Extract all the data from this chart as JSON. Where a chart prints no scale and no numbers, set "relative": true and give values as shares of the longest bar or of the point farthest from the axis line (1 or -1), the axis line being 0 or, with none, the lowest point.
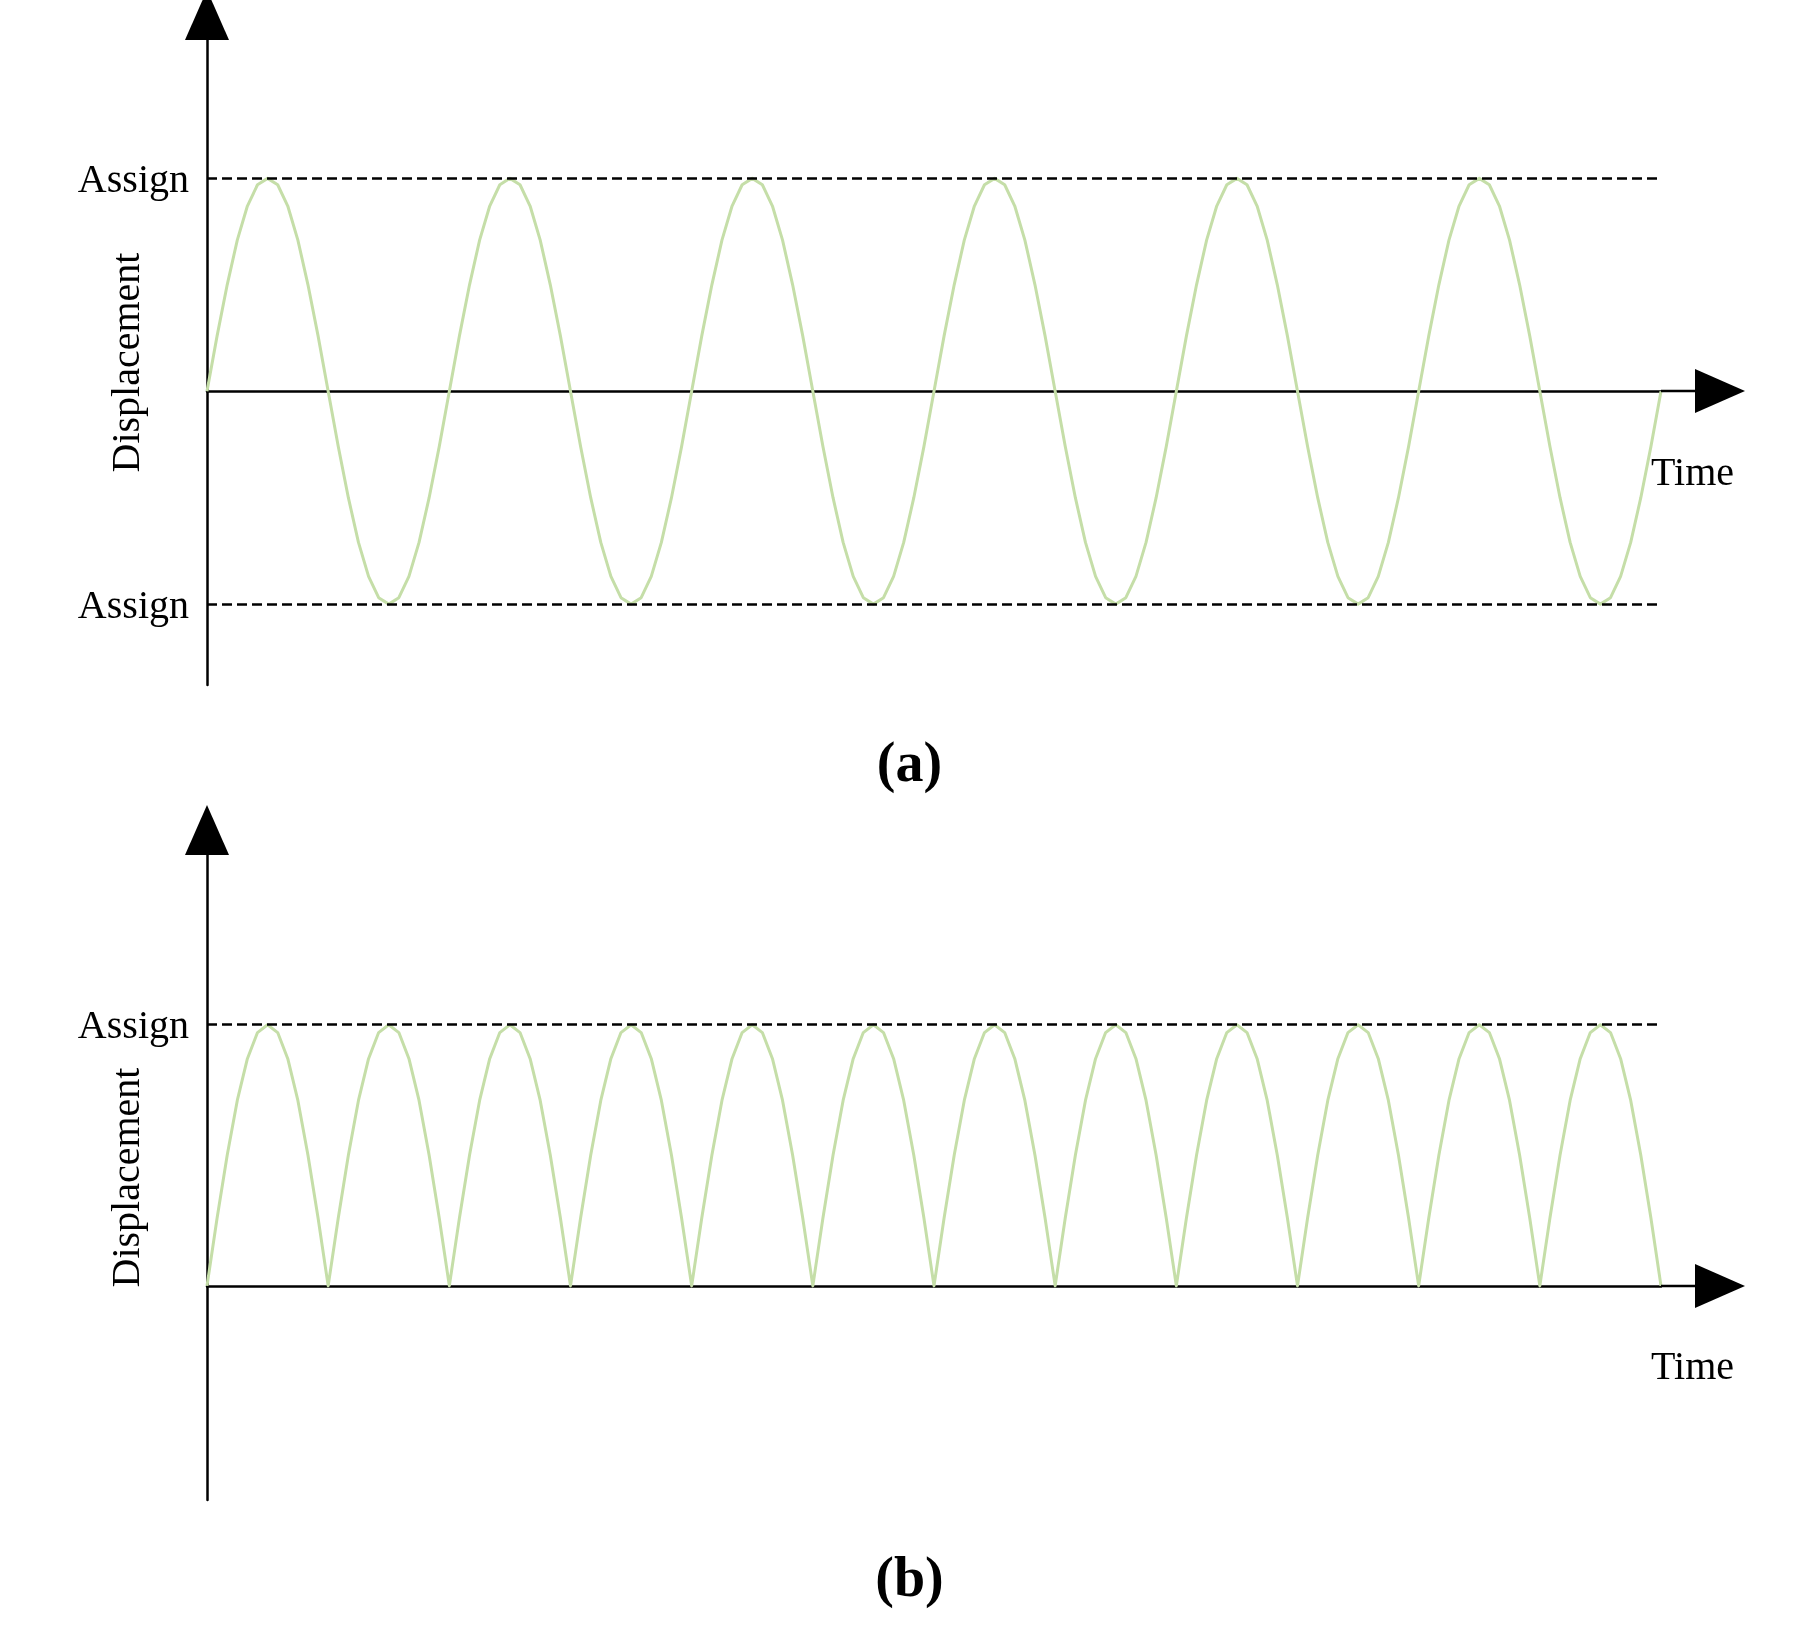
{
  "chart_data": [
    {
      "type": "line",
      "title": "(a)",
      "xlabel": "Time",
      "ylabel": "Displacement",
      "relative": true,
      "grid": false,
      "marker": "none",
      "categories": [
        null,
        null,
        null,
        null,
        null,
        null,
        null,
        null,
        null,
        null,
        null,
        null,
        null,
        null,
        null,
        null,
        null,
        null,
        null,
        null,
        null,
        null,
        null,
        null,
        null,
        null,
        null,
        null,
        null,
        null,
        null,
        null,
        null,
        null,
        null,
        null,
        null,
        null,
        null,
        null,
        null,
        null,
        null,
        null,
        null,
        null,
        null,
        null,
        null,
        null,
        null,
        null,
        null,
        null,
        null,
        null,
        null,
        null,
        null,
        null,
        null,
        null,
        null,
        null,
        null,
        null,
        null,
        null,
        null,
        null,
        null,
        null,
        null,
        null,
        null,
        null,
        null,
        null,
        null,
        null,
        null,
        null,
        null,
        null,
        null,
        null,
        null,
        null,
        null,
        null,
        null,
        null,
        null,
        null,
        null,
        null,
        null,
        null,
        null,
        null,
        null,
        null,
        null,
        null,
        null,
        null,
        null,
        null,
        null,
        null,
        null,
        null,
        null,
        null,
        null,
        null,
        null,
        null,
        null,
        null,
        null,
        null,
        null,
        null,
        null,
        null,
        null,
        null,
        null,
        null,
        null,
        null,
        null,
        null,
        null,
        null,
        null,
        null,
        null,
        null,
        null,
        null,
        null,
        null,
        null
      ],
      "series": [
        {
          "color": "#c5dea8",
          "values": [
            0,
            0.26,
            0.5,
            0.71,
            0.87,
            0.97,
            1,
            0.97,
            0.87,
            0.71,
            0.5,
            0.26,
            0,
            -0.26,
            -0.5,
            -0.71,
            -0.87,
            -0.97,
            -1,
            -0.97,
            -0.87,
            -0.71,
            -0.5,
            -0.26,
            0,
            0.26,
            0.5,
            0.71,
            0.87,
            0.97,
            1,
            0.97,
            0.87,
            0.71,
            0.5,
            0.26,
            0,
            -0.26,
            -0.5,
            -0.71,
            -0.87,
            -0.97,
            -1,
            -0.97,
            -0.87,
            -0.71,
            -0.5,
            -0.26,
            0,
            0.26,
            0.5,
            0.71,
            0.87,
            0.97,
            1,
            0.97,
            0.87,
            0.71,
            0.5,
            0.26,
            0,
            -0.26,
            -0.5,
            -0.71,
            -0.87,
            -0.97,
            -1,
            -0.97,
            -0.87,
            -0.71,
            -0.5,
            -0.26,
            0,
            0.26,
            0.5,
            0.71,
            0.87,
            0.97,
            1,
            0.97,
            0.87,
            0.71,
            0.5,
            0.26,
            0,
            -0.26,
            -0.5,
            -0.71,
            -0.87,
            -0.97,
            -1,
            -0.97,
            -0.87,
            -0.71,
            -0.5,
            -0.26,
            0,
            0.26,
            0.5,
            0.71,
            0.87,
            0.97,
            1,
            0.97,
            0.87,
            0.71,
            0.5,
            0.26,
            0,
            -0.26,
            -0.5,
            -0.71,
            -0.87,
            -0.97,
            -1,
            -0.97,
            -0.87,
            -0.71,
            -0.5,
            -0.26,
            0,
            0.26,
            0.5,
            0.71,
            0.87,
            0.97,
            1,
            0.97,
            0.87,
            0.71,
            0.5,
            0.26,
            0,
            -0.26,
            -0.5,
            -0.71,
            -0.87,
            -0.97,
            -1,
            -0.97,
            -0.87,
            -0.71,
            -0.5,
            -0.26,
            0
          ]
        }
      ],
      "ref_lines": [
        {
          "axis": "y",
          "value": 1,
          "label": "Assign",
          "color": "#000000",
          "line_style": "dashed"
        },
        {
          "axis": "y",
          "value": -1,
          "label": "Assign",
          "color": "#000000",
          "line_style": "dashed"
        }
      ]
    },
    {
      "type": "line",
      "title": "(b)",
      "xlabel": "Time",
      "ylabel": "Displacement",
      "relative": true,
      "grid": false,
      "marker": "none",
      "categories": [
        null,
        null,
        null,
        null,
        null,
        null,
        null,
        null,
        null,
        null,
        null,
        null,
        null,
        null,
        null,
        null,
        null,
        null,
        null,
        null,
        null,
        null,
        null,
        null,
        null,
        null,
        null,
        null,
        null,
        null,
        null,
        null,
        null,
        null,
        null,
        null,
        null,
        null,
        null,
        null,
        null,
        null,
        null,
        null,
        null,
        null,
        null,
        null,
        null,
        null,
        null,
        null,
        null,
        null,
        null,
        null,
        null,
        null,
        null,
        null,
        null,
        null,
        null,
        null,
        null,
        null,
        null,
        null,
        null,
        null,
        null,
        null,
        null,
        null,
        null,
        null,
        null,
        null,
        null,
        null,
        null,
        null,
        null,
        null,
        null,
        null,
        null,
        null,
        null,
        null,
        null,
        null,
        null,
        null,
        null,
        null,
        null,
        null,
        null,
        null,
        null,
        null,
        null,
        null,
        null,
        null,
        null,
        null,
        null,
        null,
        null,
        null,
        null,
        null,
        null,
        null,
        null,
        null,
        null,
        null,
        null,
        null,
        null,
        null,
        null,
        null,
        null,
        null,
        null,
        null,
        null,
        null,
        null,
        null,
        null,
        null,
        null,
        null,
        null,
        null,
        null,
        null,
        null,
        null,
        null
      ],
      "series": [
        {
          "color": "#c5dea8",
          "values": [
            0,
            0.26,
            0.5,
            0.71,
            0.87,
            0.97,
            1,
            0.97,
            0.87,
            0.71,
            0.5,
            0.26,
            0,
            0.26,
            0.5,
            0.71,
            0.87,
            0.97,
            1,
            0.97,
            0.87,
            0.71,
            0.5,
            0.26,
            0,
            0.26,
            0.5,
            0.71,
            0.87,
            0.97,
            1,
            0.97,
            0.87,
            0.71,
            0.5,
            0.26,
            0,
            0.26,
            0.5,
            0.71,
            0.87,
            0.97,
            1,
            0.97,
            0.87,
            0.71,
            0.5,
            0.26,
            0,
            0.26,
            0.5,
            0.71,
            0.87,
            0.97,
            1,
            0.97,
            0.87,
            0.71,
            0.5,
            0.26,
            0,
            0.26,
            0.5,
            0.71,
            0.87,
            0.97,
            1,
            0.97,
            0.87,
            0.71,
            0.5,
            0.26,
            0,
            0.26,
            0.5,
            0.71,
            0.87,
            0.97,
            1,
            0.97,
            0.87,
            0.71,
            0.5,
            0.26,
            0,
            0.26,
            0.5,
            0.71,
            0.87,
            0.97,
            1,
            0.97,
            0.87,
            0.71,
            0.5,
            0.26,
            0,
            0.26,
            0.5,
            0.71,
            0.87,
            0.97,
            1,
            0.97,
            0.87,
            0.71,
            0.5,
            0.26,
            0,
            0.26,
            0.5,
            0.71,
            0.87,
            0.97,
            1,
            0.97,
            0.87,
            0.71,
            0.5,
            0.26,
            0,
            0.26,
            0.5,
            0.71,
            0.87,
            0.97,
            1,
            0.97,
            0.87,
            0.71,
            0.5,
            0.26,
            0,
            0.26,
            0.5,
            0.71,
            0.87,
            0.97,
            1,
            0.97,
            0.87,
            0.71,
            0.5,
            0.26,
            0
          ]
        }
      ],
      "ref_lines": [
        {
          "axis": "y",
          "value": 1,
          "label": "Assign",
          "color": "#000000",
          "line_style": "dashed"
        }
      ]
    }
  ]
}
